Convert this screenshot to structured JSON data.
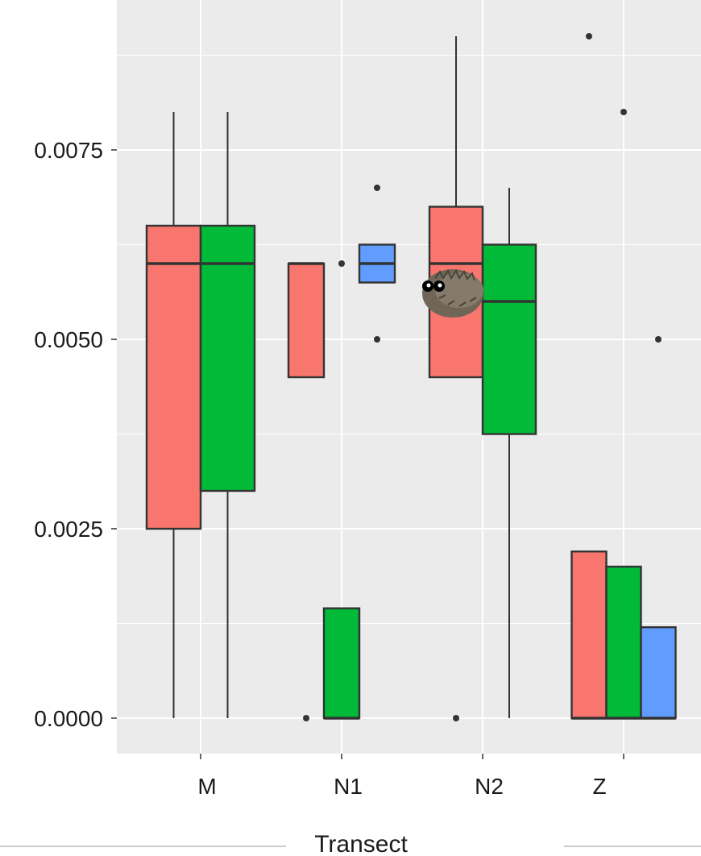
{
  "chart_data": {
    "type": "boxplot",
    "xlabel": "Transect",
    "ylabel": "",
    "categories": [
      "M",
      "N1",
      "N2",
      "Z"
    ],
    "y_ticks": [
      "0.0000",
      "0.0025",
      "0.0050",
      "0.0075"
    ],
    "y_tick_values": [
      0,
      0.0025,
      0.005,
      0.0075
    ],
    "ylim": [
      -0.0005,
      0.0093
    ],
    "grid": true,
    "legend": "none",
    "group_colors": [
      "#F8766D",
      "#00BA38",
      "#619CFF"
    ],
    "boxes": [
      {
        "category": "M",
        "group": 0,
        "lower_whisker": 0.0,
        "q1": 0.0025,
        "median": 0.006,
        "q3": 0.0065,
        "upper_whisker": 0.008,
        "outliers": []
      },
      {
        "category": "M",
        "group": 1,
        "lower_whisker": 0.0,
        "q1": 0.003,
        "median": 0.006,
        "q3": 0.0065,
        "upper_whisker": 0.008,
        "outliers": []
      },
      {
        "category": "N1",
        "group": 0,
        "lower_whisker": 0.0045,
        "q1": 0.0045,
        "median": 0.006,
        "q3": 0.006,
        "upper_whisker": 0.006,
        "outliers": [
          0.0
        ]
      },
      {
        "category": "N1",
        "group": 1,
        "lower_whisker": 0.0,
        "q1": 0.0,
        "median": 0.0,
        "q3": 0.00145,
        "upper_whisker": 0.00145,
        "outliers": [
          0.006
        ]
      },
      {
        "category": "N1",
        "group": 2,
        "lower_whisker": 0.00575,
        "q1": 0.00575,
        "median": 0.006,
        "q3": 0.00625,
        "upper_whisker": 0.00625,
        "outliers": [
          0.007,
          0.005
        ]
      },
      {
        "category": "N2",
        "group": 0,
        "lower_whisker": 0.0045,
        "q1": 0.0045,
        "median": 0.006,
        "q3": 0.00675,
        "upper_whisker": 0.009,
        "outliers": [
          0.0
        ]
      },
      {
        "category": "N2",
        "group": 1,
        "lower_whisker": 0.0,
        "q1": 0.00375,
        "median": 0.0055,
        "q3": 0.00625,
        "upper_whisker": 0.007,
        "outliers": []
      },
      {
        "category": "Z",
        "group": 0,
        "lower_whisker": 0.0,
        "q1": 0.0,
        "median": 0.0,
        "q3": 0.0022,
        "upper_whisker": 0.0022,
        "outliers": [
          0.009
        ]
      },
      {
        "category": "Z",
        "group": 1,
        "lower_whisker": 0.0,
        "q1": 0.0,
        "median": 0.0,
        "q3": 0.002,
        "upper_whisker": 0.002,
        "outliers": [
          0.008
        ]
      },
      {
        "category": "Z",
        "group": 2,
        "lower_whisker": 0.0,
        "q1": 0.0,
        "median": 0.0,
        "q3": 0.0012,
        "upper_whisker": 0.0012,
        "outliers": [
          0.005
        ]
      }
    ]
  },
  "decoration": {
    "sticker": "hedgehog-sticker"
  }
}
